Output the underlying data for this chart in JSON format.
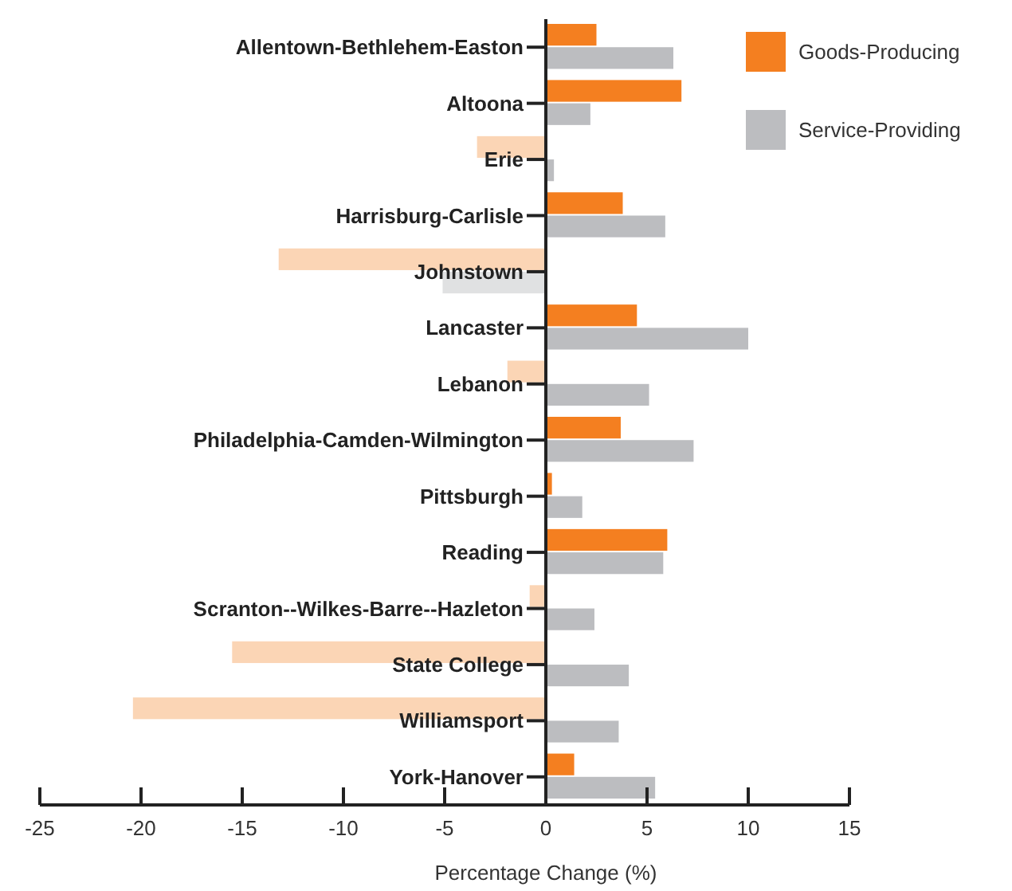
{
  "chart_data": {
    "type": "bar",
    "orientation": "horizontal",
    "xlabel": "Percentage Change (%)",
    "categories": [
      "Allentown-Bethlehem-Easton",
      "Altoona",
      "Erie",
      "Harrisburg-Carlisle",
      "Johnstown",
      "Lancaster",
      "Lebanon",
      "Philadelphia-Camden-Wilmington",
      "Pittsburgh",
      "Reading",
      "Scranton--Wilkes-Barre--Hazleton",
      "State College",
      "Williamsport",
      "York-Hanover"
    ],
    "series": [
      {
        "name": "Goods-Producing",
        "color": "#f47f20",
        "colors": [
          "#f47f20",
          "#f47f20",
          "#fbd5b5",
          "#f47f20",
          "#fbd5b5",
          "#f47f20",
          "#fbd5b5",
          "#f47f20",
          "#f47f20",
          "#f47f20",
          "#fbd5b5",
          "#fbd5b5",
          "#fbd5b5",
          "#f47f20"
        ],
        "values": [
          2.5,
          6.7,
          -3.4,
          3.8,
          -13.2,
          4.5,
          -1.9,
          3.7,
          0.3,
          6.0,
          -0.8,
          -15.5,
          -20.4,
          1.4
        ]
      },
      {
        "name": "Service-Providing",
        "color": "#bcbdc0",
        "colors": [
          "#bcbdc0",
          "#bcbdc0",
          "#bcbdc0",
          "#bcbdc0",
          "#e0e1e2",
          "#bcbdc0",
          "#bcbdc0",
          "#bcbdc0",
          "#bcbdc0",
          "#bcbdc0",
          "#bcbdc0",
          "#bcbdc0",
          "#bcbdc0",
          "#bcbdc0"
        ],
        "values": [
          6.3,
          2.2,
          0.4,
          5.9,
          -5.1,
          10.0,
          5.1,
          7.3,
          1.8,
          5.8,
          2.4,
          4.1,
          3.6,
          5.4
        ]
      }
    ],
    "xlim": [
      -25,
      15
    ],
    "xticks": [
      -25,
      -20,
      -15,
      -10,
      -5,
      0,
      5,
      10,
      15
    ],
    "grid": false,
    "legend": "top right"
  }
}
